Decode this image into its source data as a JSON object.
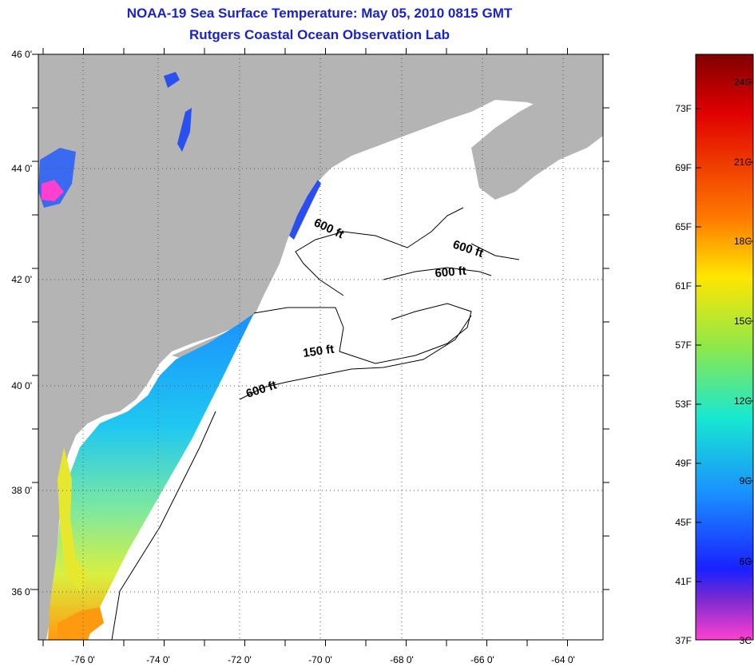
{
  "header": {
    "title": "NOAA-19 Sea Surface Temperature:  May 05, 2010 0815 GMT",
    "subtitle": "Rutgers Coastal Ocean Observation Lab"
  },
  "map": {
    "lat_labels": [
      "46 0'",
      "44 0'",
      "42 0'",
      "40 0'",
      "38 0'",
      "36 0'"
    ],
    "lon_labels": [
      "-76 0'",
      "-74 0'",
      "-72 0'",
      "-70 0'",
      "-68 0'",
      "-66 0'",
      "-64 0'"
    ],
    "contour_labels": [
      "600 ft",
      "600 ft",
      "600 ft",
      "150 ft",
      "600 ft"
    ],
    "colors": {
      "land": "#b4b4b4",
      "ocean": "#ffffff",
      "grid": "#555555"
    }
  },
  "colorbar": {
    "fahrenheit": [
      "73F",
      "69F",
      "65F",
      "61F",
      "57F",
      "53F",
      "49F",
      "45F",
      "41F",
      "37F"
    ],
    "celsius": [
      "24C",
      "21C",
      "18C",
      "15C",
      "12C",
      "9C",
      "6C",
      "3C"
    ],
    "stops": [
      "#800000",
      "#e00000",
      "#ff7a00",
      "#ffe600",
      "#8ee84a",
      "#18e8d0",
      "#1a90ff",
      "#1a20ff",
      "#7a2ad0",
      "#ff40d0"
    ]
  }
}
